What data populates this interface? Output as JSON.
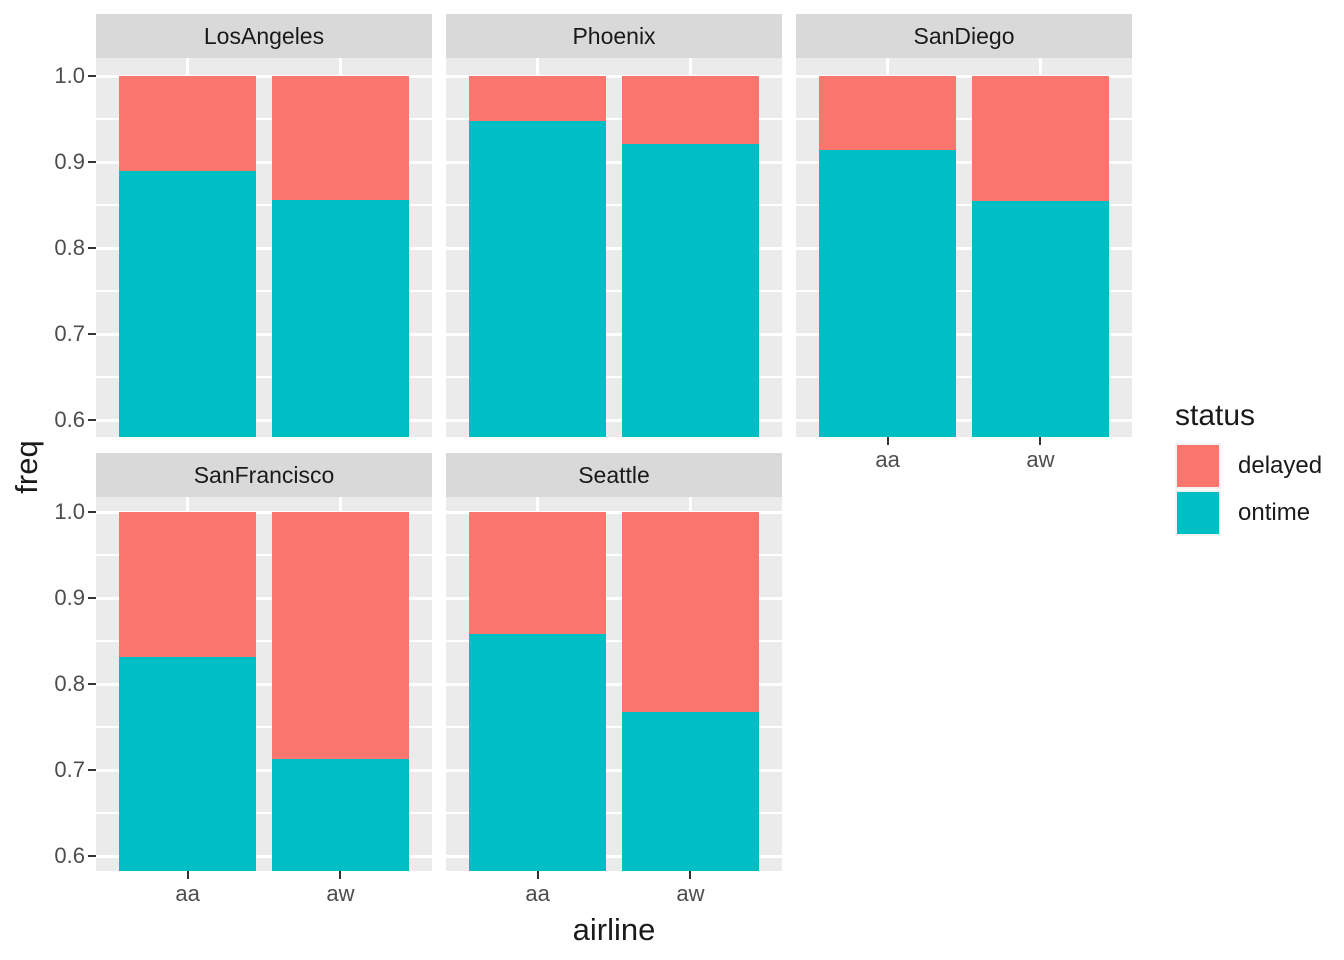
{
  "chart_data": {
    "type": "bar",
    "variant": "100%-stacked bars, faceted small multiples (ggplot2 style)",
    "title": "",
    "xlabel": "airline",
    "ylabel": "freq",
    "categories": [
      "aa",
      "aw"
    ],
    "legend": {
      "title": "status",
      "position": "right",
      "entries": [
        {
          "label": "delayed",
          "color": "#F8766D"
        },
        {
          "label": "ontime",
          "color": "#00BFC4"
        }
      ]
    },
    "y_ticks": [
      1.0,
      0.9,
      0.8,
      0.7,
      0.6
    ],
    "y_tick_labels": [
      "1.0",
      "0.9",
      "0.8",
      "0.7",
      "0.6"
    ],
    "y_minor_ticks": [
      0.95,
      0.85,
      0.75,
      0.65
    ],
    "ylim_display": [
      0.58,
      1.02
    ],
    "bar_total": 1.0,
    "facets": [
      {
        "name": "LosAngeles",
        "series": [
          {
            "name": "delayed",
            "values": [
              0.111,
              0.144
            ]
          },
          {
            "name": "ontime",
            "values": [
              0.889,
              0.856
            ]
          }
        ]
      },
      {
        "name": "Phoenix",
        "series": [
          {
            "name": "delayed",
            "values": [
              0.052,
              0.079
            ]
          },
          {
            "name": "ontime",
            "values": [
              0.948,
              0.921
            ]
          }
        ]
      },
      {
        "name": "SanDiego",
        "series": [
          {
            "name": "delayed",
            "values": [
              0.086,
              0.145
            ]
          },
          {
            "name": "ontime",
            "values": [
              0.914,
              0.855
            ]
          }
        ]
      },
      {
        "name": "SanFrancisco",
        "series": [
          {
            "name": "delayed",
            "values": [
              0.169,
              0.287
            ]
          },
          {
            "name": "ontime",
            "values": [
              0.831,
              0.713
            ]
          }
        ]
      },
      {
        "name": "Seattle",
        "series": [
          {
            "name": "delayed",
            "values": [
              0.142,
              0.233
            ]
          },
          {
            "name": "ontime",
            "values": [
              0.858,
              0.767
            ]
          }
        ]
      }
    ]
  },
  "colors": {
    "delayed": "#F8766D",
    "ontime": "#00BFC4",
    "panel_bg": "#EBEBEB",
    "strip_bg": "#D9D9D9",
    "gridline": "#FFFFFF",
    "tick_mark": "#333333",
    "tick_label": "#4D4D4D",
    "text": "#1A1A1A",
    "figure_bg": "#FFFFFF"
  }
}
